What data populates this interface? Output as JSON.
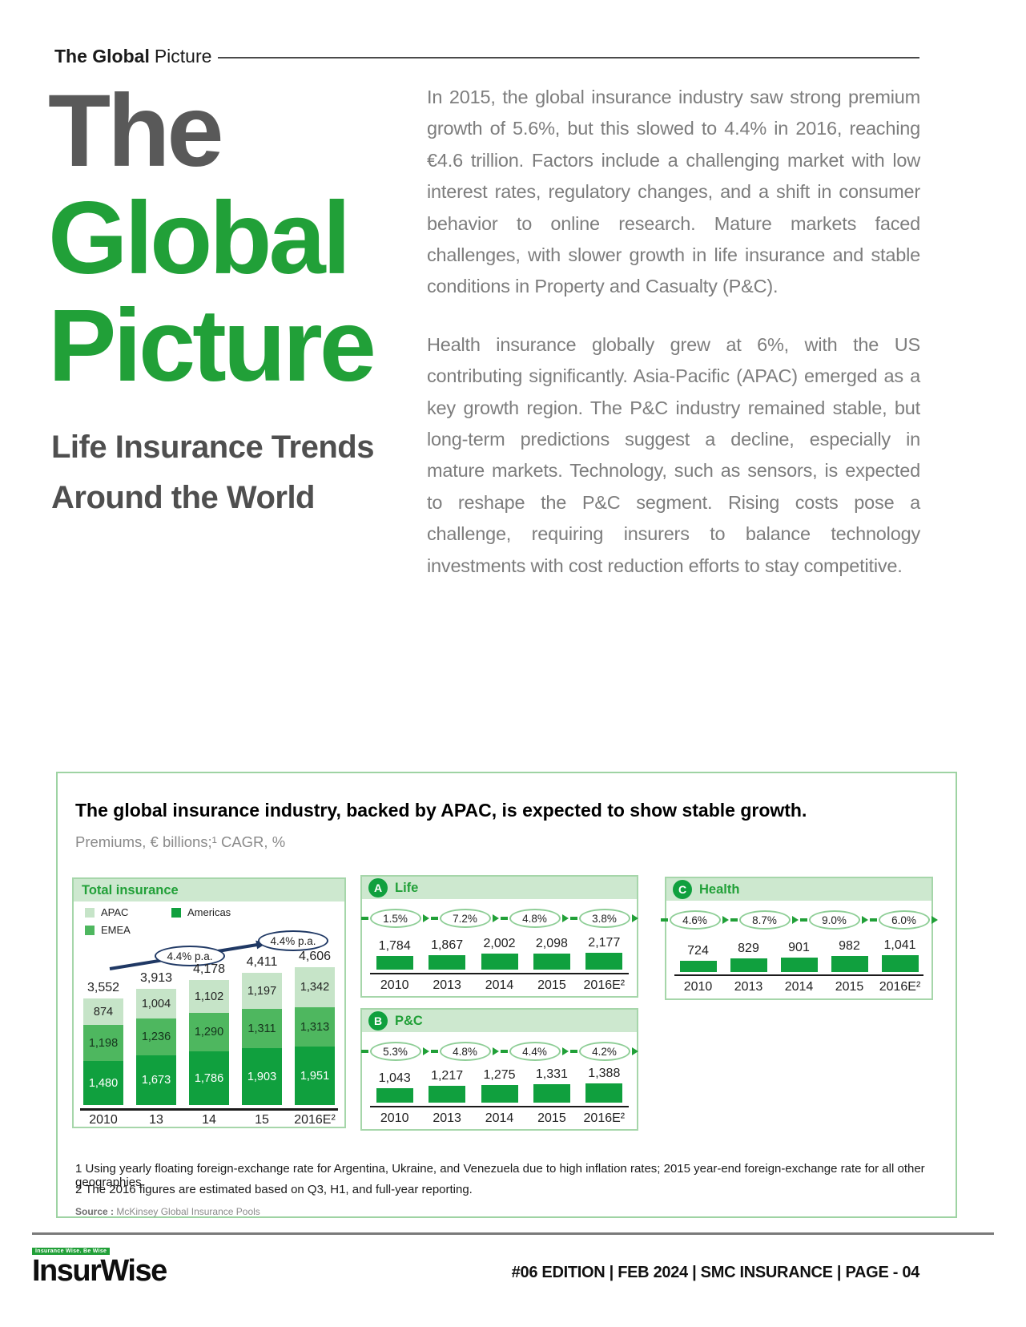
{
  "header": {
    "eyebrow_bold": "The Global",
    "eyebrow_light": "Picture"
  },
  "hero": {
    "title_word1": "The",
    "title_word2": "Global",
    "title_word3": "Picture",
    "subtitle_line1": "Life Insurance Trends",
    "subtitle_line2": "Around the World",
    "paragraph1": "In 2015, the global insurance industry saw strong premium growth of 5.6%, but this slowed to 4.4% in 2016, reaching €4.6 trillion. Factors include a challenging market with low interest rates, regulatory changes, and a shift in consumer behavior to online research. Mature markets faced challenges, with slower growth in life insurance and stable conditions in Property and Casualty (P&C).",
    "paragraph2": "Health insurance globally grew at 6%, with the US contributing significantly. Asia-Pacific (APAC) emerged as a key growth region. The P&C industry remained stable, but long-term predictions suggest a decline, especially in mature markets. Technology, such as sensors, is expected to reshape the P&C segment. Rising costs pose a challenge, requiring insurers to balance technology investments with cost reduction efforts to stay competitive."
  },
  "card": {
    "title": "The global insurance industry, backed by APAC, is expected to show stable growth.",
    "subtitle": "Premiums, € billions;¹ CAGR, %",
    "footnote1": "1 Using yearly floating foreign-exchange rate for Argentina, Ukraine, and Venezuela due to high inflation rates; 2015 year-end foreign-exchange rate for all other geographies.",
    "footnote2": "2 The 2016 figures are estimated based on Q3, H1, and full-year reporting.",
    "source_label": "Source :",
    "source_text": "McKinsey Global Insurance Pools"
  },
  "chart_data": [
    {
      "id": "total_insurance",
      "type": "bar",
      "stacked": true,
      "title": "Total insurance",
      "categories": [
        "2010",
        "13",
        "14",
        "15",
        "2016E²"
      ],
      "legend": [
        "APAC",
        "Americas",
        "EMEA"
      ],
      "series": [
        {
          "name": "Americas",
          "values": [
            1480,
            1673,
            1786,
            1903,
            1951
          ]
        },
        {
          "name": "EMEA",
          "values": [
            1198,
            1236,
            1290,
            1311,
            1313
          ]
        },
        {
          "name": "APAC",
          "values": [
            874,
            1004,
            1102,
            1197,
            1342
          ]
        }
      ],
      "totals": [
        3552,
        3913,
        4178,
        4411,
        4606
      ],
      "annotations": [
        "4.4% p.a.",
        "4.4% p.a."
      ]
    },
    {
      "id": "life",
      "badge": "A",
      "type": "bar",
      "title": "Life",
      "categories": [
        "2010",
        "2013",
        "2014",
        "2015",
        "2016E²"
      ],
      "values": [
        1784,
        1867,
        2002,
        2098,
        2177
      ],
      "cagr": [
        "1.5%",
        "7.2%",
        "4.8%",
        "3.8%"
      ]
    },
    {
      "id": "pnc",
      "badge": "B",
      "type": "bar",
      "title": "P&C",
      "categories": [
        "2010",
        "2013",
        "2014",
        "2015",
        "2016E²"
      ],
      "values": [
        1043,
        1217,
        1275,
        1331,
        1388
      ],
      "cagr": [
        "5.3%",
        "4.8%",
        "4.4%",
        "4.2%"
      ]
    },
    {
      "id": "health",
      "badge": "C",
      "type": "bar",
      "title": "Health",
      "categories": [
        "2010",
        "2013",
        "2014",
        "2015",
        "2016E²"
      ],
      "values": [
        724,
        829,
        901,
        982,
        1041
      ],
      "cagr": [
        "4.6%",
        "8.7%",
        "9.0%",
        "6.0%"
      ]
    }
  ],
  "footer": {
    "logo_tagline": "Insurance Wise. Be Wise",
    "logo_text": "InsurWise",
    "right_text": "#06 EDITION | FEB 2024 |  SMC INSURANCE | PAGE - 04"
  },
  "colors": {
    "accent_green": "#21a038",
    "bar_dark": "#10a03e",
    "bar_mid": "#4eb75f",
    "bar_light": "#c6e4c8",
    "band_bg": "#cde8cf",
    "panel_border": "#a6d6aa",
    "annotation_navy": "#1f3864"
  }
}
